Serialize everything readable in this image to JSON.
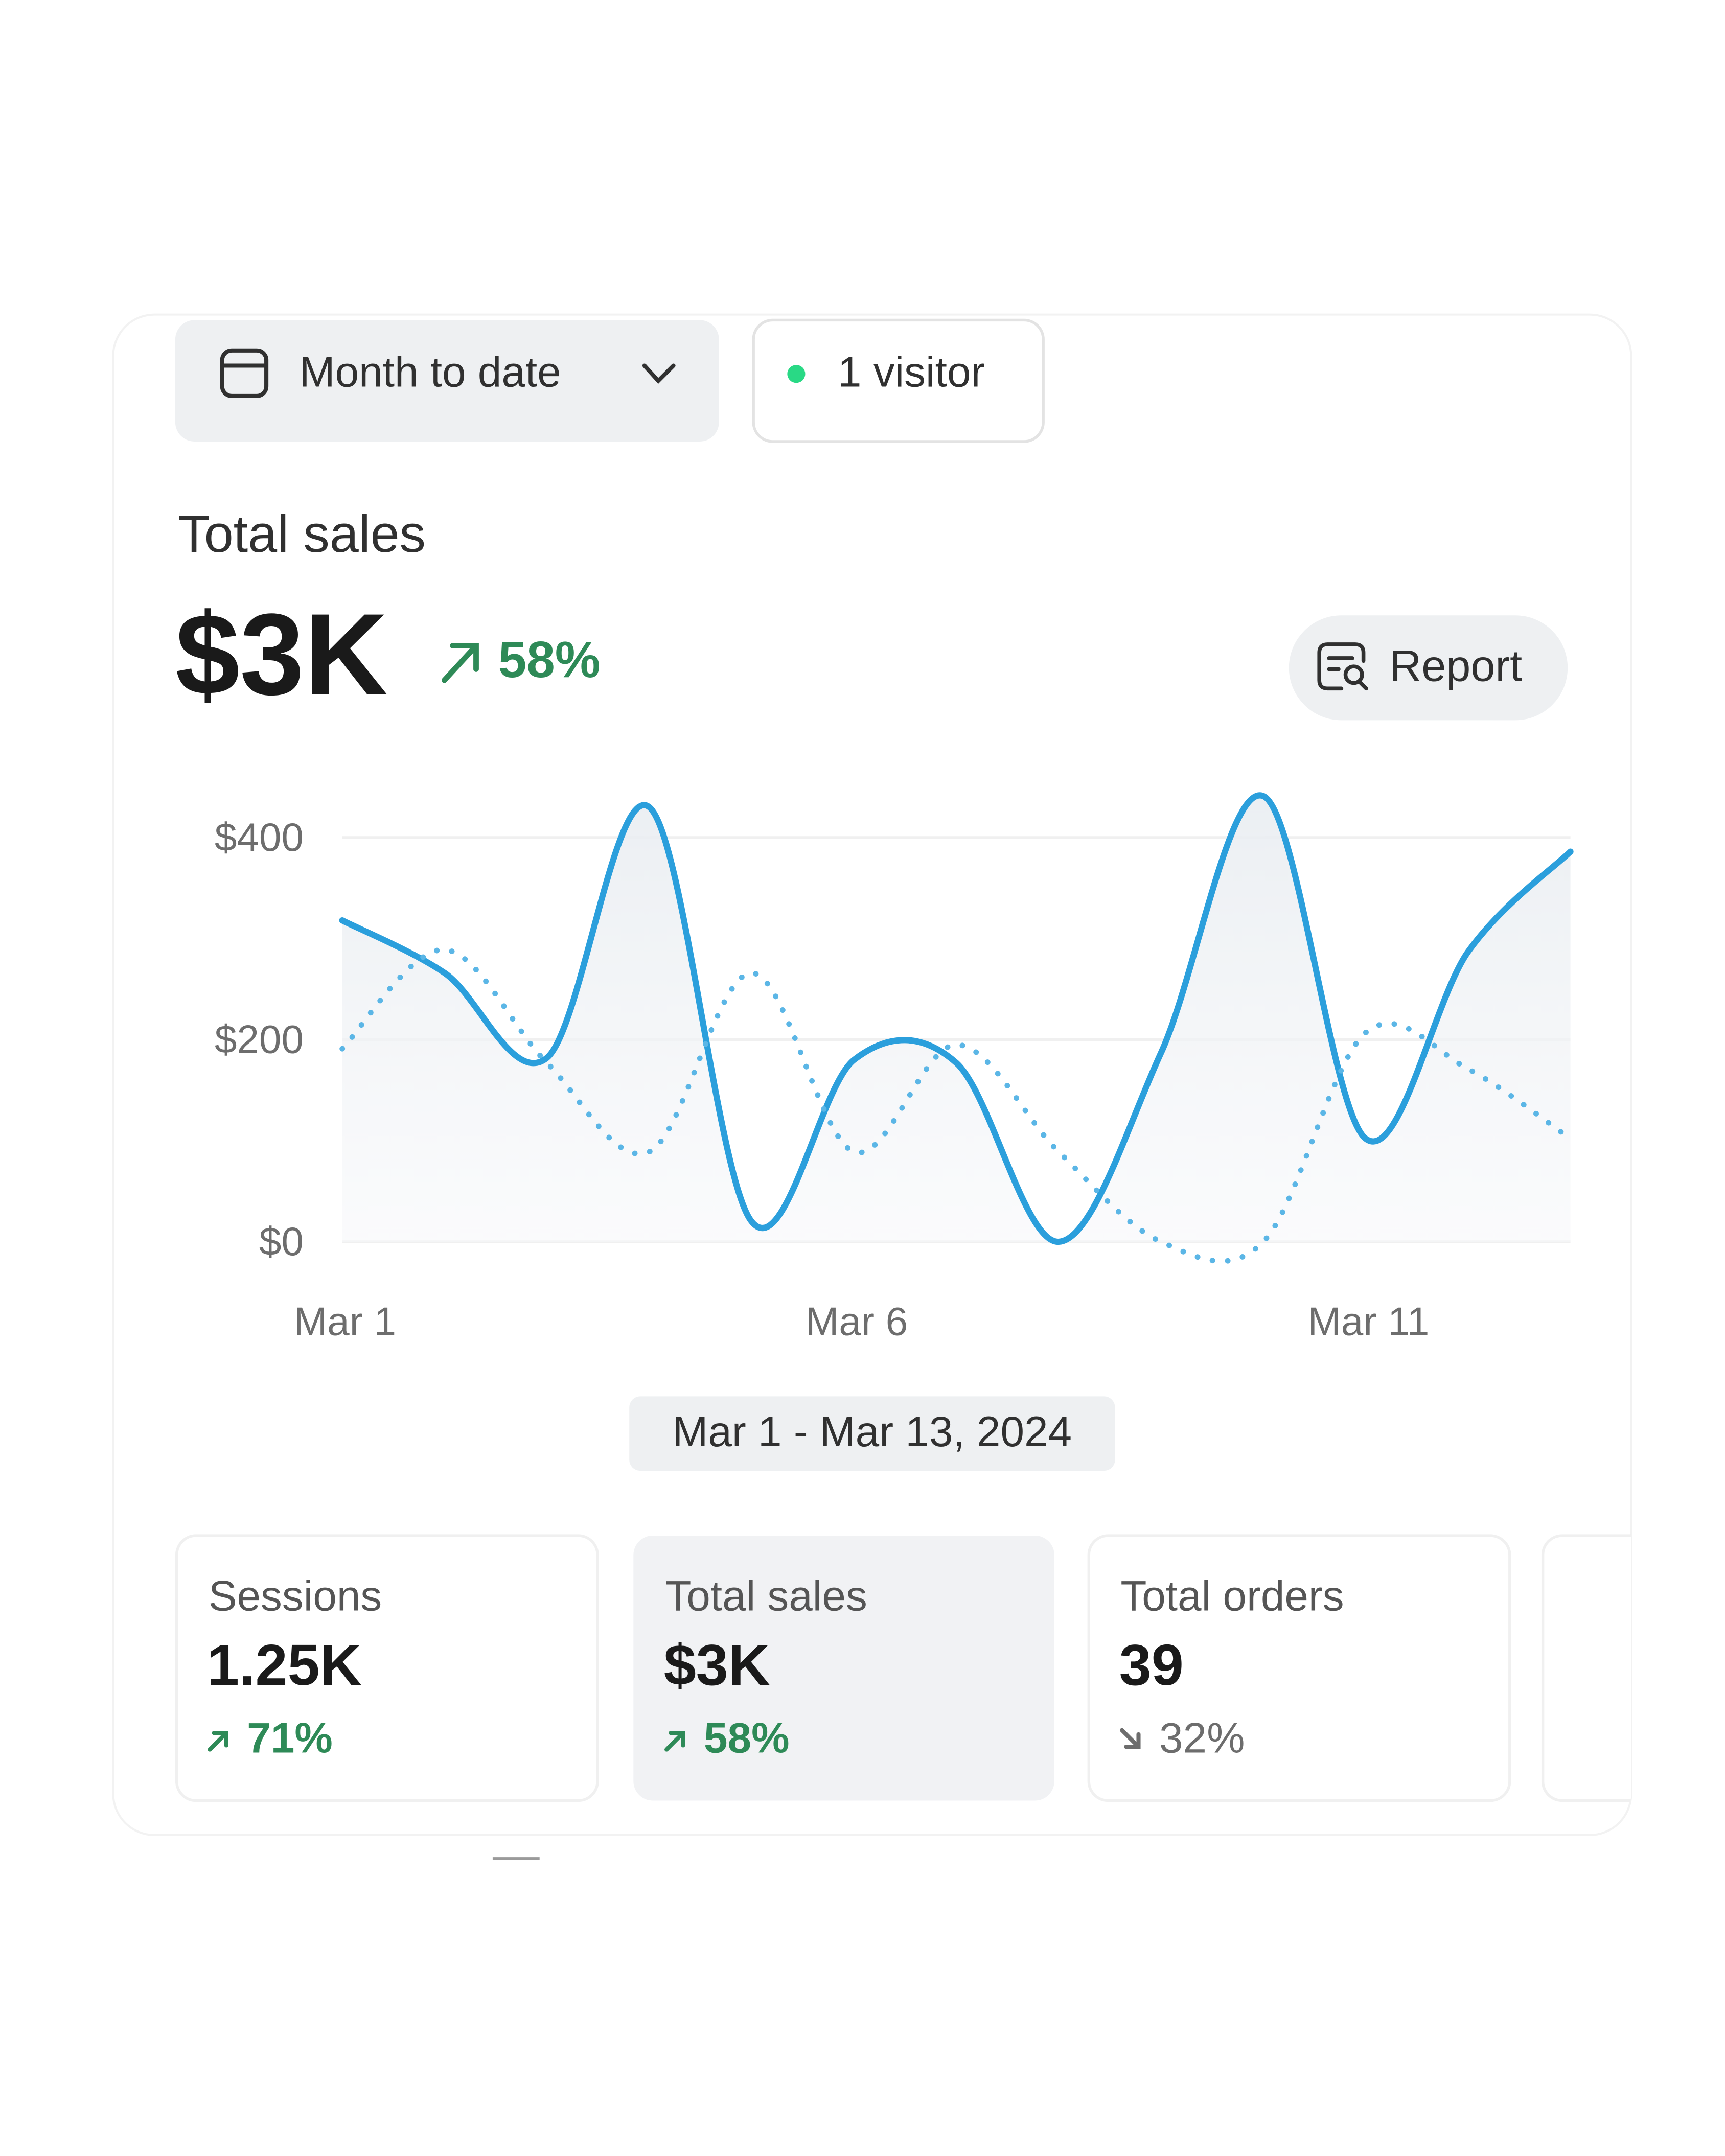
{
  "filters": {
    "date_range": "Month to date",
    "visitors": "1 visitor"
  },
  "summary": {
    "title": "Total sales",
    "value": "$3K",
    "change": "58%"
  },
  "report_button": "Report",
  "chart_data": {
    "type": "line",
    "categories": [
      "Mar 1",
      null,
      null,
      null,
      null,
      "Mar 6",
      null,
      null,
      null,
      null,
      "Mar 11",
      null,
      null
    ],
    "series": [
      {
        "color": "#2b9fdc",
        "style": "solid",
        "values": [
          318,
          266,
          182,
          430,
          20,
          180,
          177,
          0,
          187,
          441,
          102,
          287,
          386
        ]
      },
      {
        "color": "#5bb6e6",
        "style": "dotted",
        "values": [
          191,
          289,
          177,
          89,
          266,
          89,
          195,
          89,
          0,
          0,
          207,
          171,
          102
        ]
      }
    ],
    "ylim": [
      0,
      460
    ],
    "yticks": [
      {
        "value": 0,
        "label": "$0"
      },
      {
        "value": 200,
        "label": "$200"
      },
      {
        "value": 400,
        "label": "$400"
      }
    ],
    "grid": true
  },
  "date_label": "Mar 1 - Mar 13, 2024",
  "cards": [
    {
      "title": "Sessions",
      "value": "1.25K",
      "change": "71%",
      "direction": "up"
    },
    {
      "title": "Total sales",
      "value": "$3K",
      "change": "58%",
      "direction": "up"
    },
    {
      "title": "Total orders",
      "value": "39",
      "change": "32%",
      "direction": "down"
    }
  ]
}
